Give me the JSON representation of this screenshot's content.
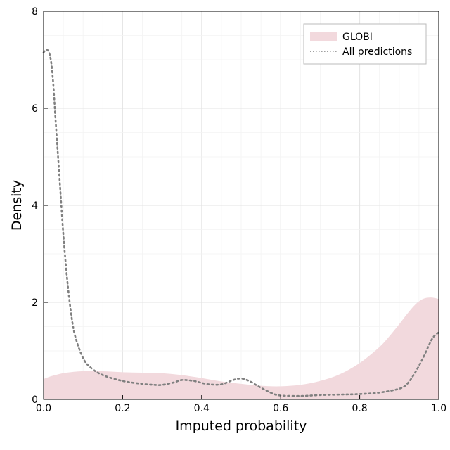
{
  "chart_data": {
    "type": "area",
    "xlabel": "Imputed probability",
    "ylabel": "Density",
    "xlim": [
      0,
      1
    ],
    "ylim": [
      0,
      8
    ],
    "xticks": [
      "0.0",
      "0.2",
      "0.4",
      "0.6",
      "0.8",
      "1.0"
    ],
    "xtick_values": [
      0,
      0.2,
      0.4,
      0.6,
      0.8,
      1.0
    ],
    "yticks": [
      "0",
      "2",
      "4",
      "6",
      "8"
    ],
    "ytick_values": [
      0,
      2,
      4,
      6,
      8
    ],
    "grid": true,
    "legend_position": "top-right",
    "series": [
      {
        "name": "GLOBI",
        "style": "filled-area",
        "color": "#f2d9dd",
        "x": [
          0,
          0.02,
          0.05,
          0.08,
          0.1,
          0.15,
          0.2,
          0.25,
          0.3,
          0.35,
          0.4,
          0.45,
          0.5,
          0.55,
          0.6,
          0.65,
          0.7,
          0.75,
          0.8,
          0.85,
          0.88,
          0.9,
          0.92,
          0.94,
          0.96,
          0.98,
          1.0
        ],
        "y": [
          0.42,
          0.48,
          0.54,
          0.57,
          0.58,
          0.58,
          0.56,
          0.55,
          0.54,
          0.5,
          0.44,
          0.37,
          0.32,
          0.28,
          0.27,
          0.3,
          0.38,
          0.52,
          0.75,
          1.08,
          1.35,
          1.55,
          1.76,
          1.95,
          2.07,
          2.1,
          2.07
        ]
      },
      {
        "name": "All predictions",
        "style": "dotted-line",
        "color": "#808080",
        "x": [
          0,
          0.005,
          0.01,
          0.015,
          0.02,
          0.025,
          0.03,
          0.04,
          0.05,
          0.06,
          0.07,
          0.08,
          0.1,
          0.12,
          0.15,
          0.2,
          0.25,
          0.28,
          0.3,
          0.33,
          0.35,
          0.38,
          0.4,
          0.42,
          0.45,
          0.48,
          0.5,
          0.52,
          0.55,
          0.58,
          0.6,
          0.65,
          0.7,
          0.75,
          0.8,
          0.85,
          0.9,
          0.92,
          0.94,
          0.96,
          0.98,
          0.99,
          1.0
        ],
        "y": [
          7.15,
          7.2,
          7.2,
          7.12,
          6.9,
          6.45,
          5.8,
          4.6,
          3.4,
          2.45,
          1.75,
          1.3,
          0.85,
          0.65,
          0.5,
          0.38,
          0.32,
          0.3,
          0.3,
          0.35,
          0.4,
          0.38,
          0.34,
          0.31,
          0.31,
          0.4,
          0.43,
          0.38,
          0.24,
          0.12,
          0.08,
          0.07,
          0.09,
          0.1,
          0.11,
          0.14,
          0.22,
          0.32,
          0.55,
          0.85,
          1.2,
          1.32,
          1.38
        ]
      }
    ]
  }
}
